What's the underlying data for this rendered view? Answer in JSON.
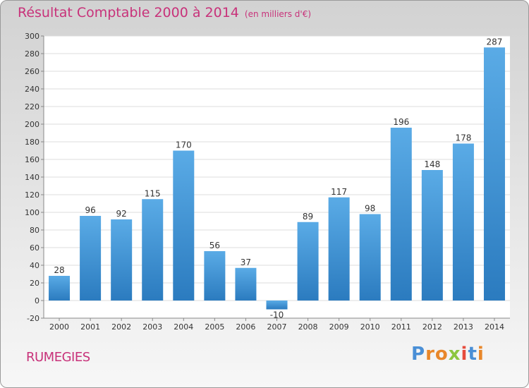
{
  "header": {
    "title": "Résultat Comptable 2000 à 2014",
    "unit": "(en milliers d'€)"
  },
  "footer": {
    "town": "RUMEGIES",
    "logo_letters": [
      "P",
      "r",
      "o",
      "x",
      "i",
      "t",
      "i"
    ],
    "logo_colors": [
      "#4a8fd6",
      "#e8872a",
      "#e8872a",
      "#8cc63f",
      "#e64b3c",
      "#4a8fd6",
      "#e8872a"
    ]
  },
  "chart_data": {
    "type": "bar",
    "categories": [
      "2000",
      "2001",
      "2002",
      "2003",
      "2004",
      "2005",
      "2006",
      "2007",
      "2008",
      "2009",
      "2010",
      "2011",
      "2012",
      "2013",
      "2014"
    ],
    "values": [
      28,
      96,
      92,
      115,
      170,
      56,
      37,
      -10,
      89,
      117,
      98,
      196,
      148,
      178,
      287
    ],
    "value_labels": [
      "28",
      "96",
      "92",
      "115",
      "170",
      "56",
      "37",
      "-10",
      "89",
      "117",
      "98",
      "196",
      "148",
      "178",
      "287"
    ],
    "yticks": [
      "-20",
      "0",
      "20",
      "40",
      "60",
      "80",
      "100",
      "120",
      "140",
      "160",
      "180",
      "200",
      "220",
      "240",
      "260",
      "280",
      "300"
    ],
    "ylim": [
      -20,
      300
    ],
    "grid": true,
    "bar_color_top": "#5aabe6",
    "bar_color_bottom": "#2b7bbf"
  }
}
